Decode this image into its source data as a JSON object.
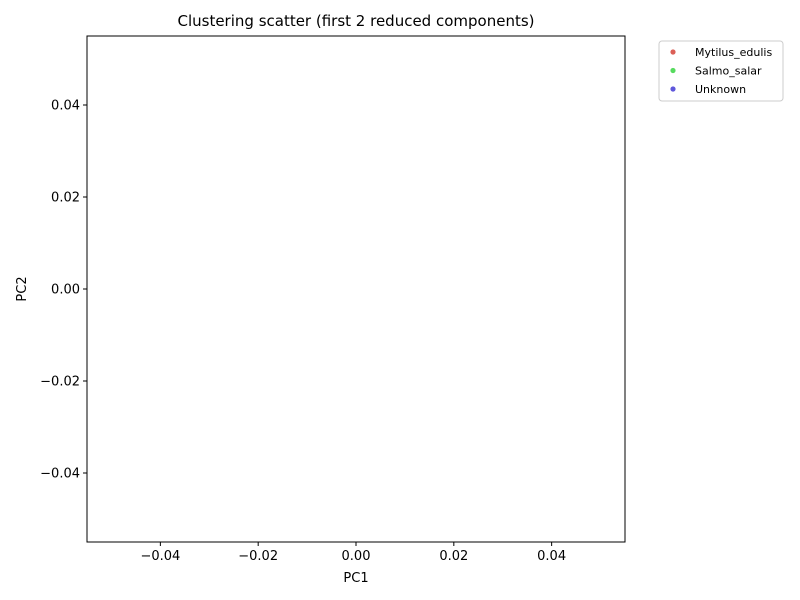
{
  "chart_data": {
    "type": "scatter",
    "title": "Clustering scatter (first 2 reduced components)",
    "xlabel": "PC1",
    "ylabel": "PC2",
    "xlim": [
      -0.055,
      0.055
    ],
    "ylim": [
      -0.055,
      0.055
    ],
    "xticks": [
      -0.04,
      -0.02,
      0.0,
      0.02,
      0.04
    ],
    "yticks": [
      -0.04,
      -0.02,
      0.0,
      0.02,
      0.04
    ],
    "xtick_labels": [
      "−0.04",
      "−0.02",
      "0.00",
      "0.02",
      "0.04"
    ],
    "ytick_labels": [
      "−0.04",
      "−0.02",
      "0.00",
      "0.02",
      "0.04"
    ],
    "grid": false,
    "legend_placement": "outside top-right",
    "series": [
      {
        "name": "Mytilus_edulis",
        "color": "#db5f57",
        "x": [],
        "y": []
      },
      {
        "name": "Salmo_salar",
        "color": "#57db5f",
        "x": [],
        "y": []
      },
      {
        "name": "Unknown",
        "color": "#5f57db",
        "x": [],
        "y": []
      }
    ]
  }
}
